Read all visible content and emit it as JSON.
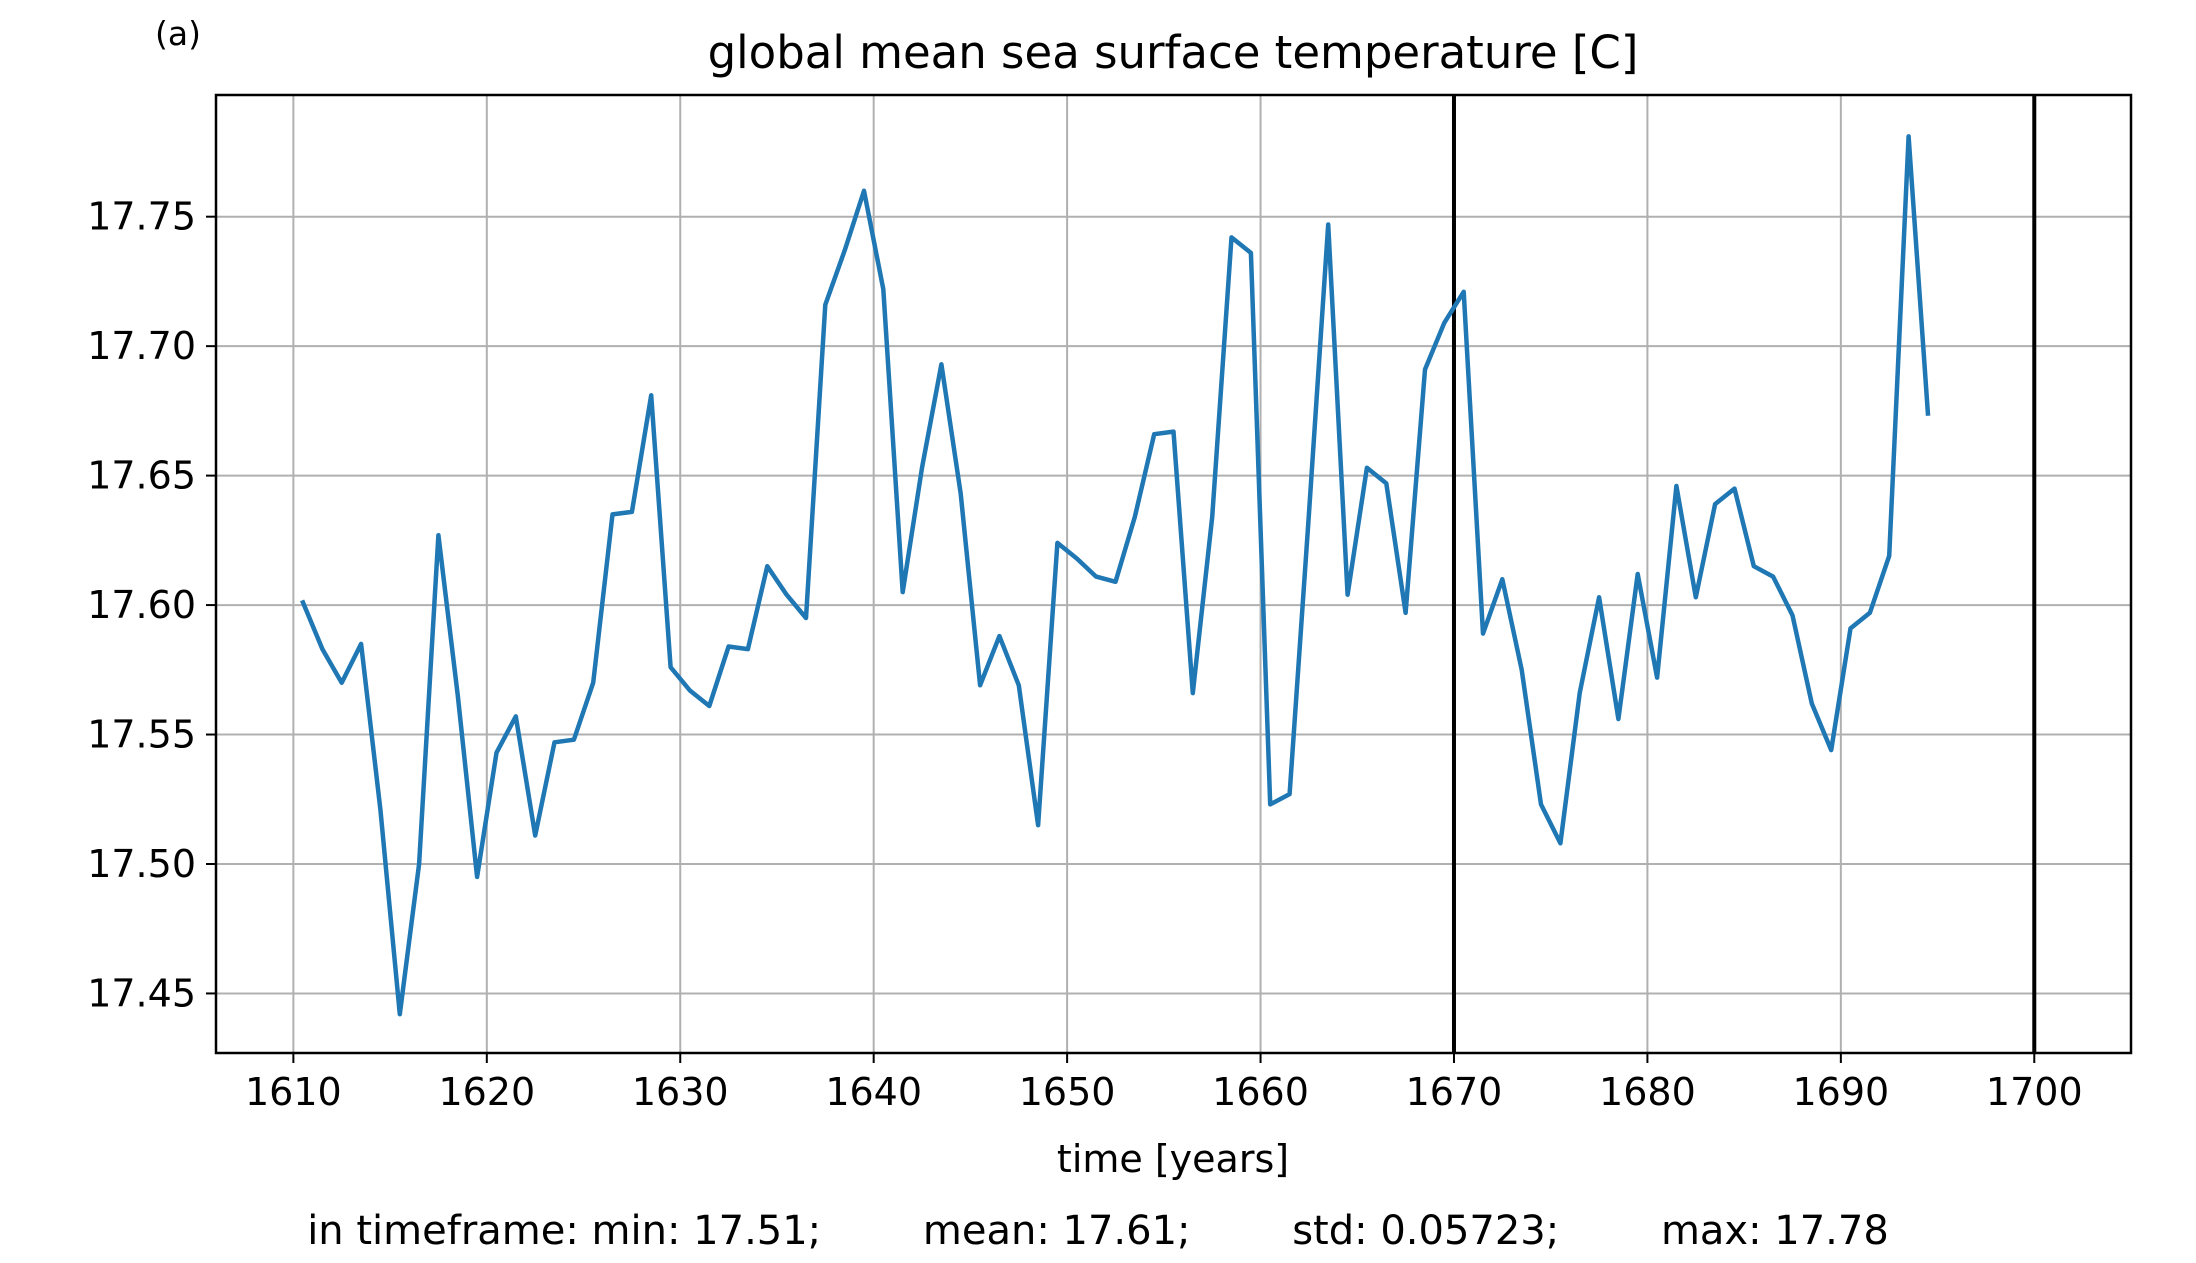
{
  "panel_label": "(a)",
  "stats": {
    "min": "in timeframe: min: 17.51;",
    "mean": "mean: 17.61;",
    "std": "std: 0.05723;",
    "max": "max: 17.78"
  },
  "chart_data": {
    "type": "line",
    "title": "global mean sea surface temperature [C]",
    "xlabel": "time [years]",
    "ylabel": "",
    "xlim": [
      1606,
      1705
    ],
    "ylim": [
      17.427,
      17.797
    ],
    "xticks": [
      1610,
      1620,
      1630,
      1640,
      1650,
      1660,
      1670,
      1680,
      1690,
      1700
    ],
    "xtick_labels": [
      "1610",
      "1620",
      "1630",
      "1640",
      "1650",
      "1660",
      "1670",
      "1680",
      "1690",
      "1700"
    ],
    "yticks": [
      17.45,
      17.5,
      17.55,
      17.6,
      17.65,
      17.7,
      17.75
    ],
    "ytick_labels": [
      "17.45",
      "17.50",
      "17.55",
      "17.60",
      "17.65",
      "17.70",
      "17.75"
    ],
    "grid": true,
    "vlines": [
      1670,
      1700
    ],
    "colors": {
      "series": "#1f77b4",
      "grid": "#b0b0b0",
      "vline": "#000000"
    },
    "series": [
      {
        "x": [
          1610.5,
          1611.5,
          1612.5,
          1613.5,
          1614.5,
          1615.5,
          1616.5,
          1617.5,
          1618.5,
          1619.5,
          1620.5,
          1621.5,
          1622.5,
          1623.5,
          1624.5,
          1625.5,
          1626.5,
          1627.5,
          1628.5,
          1629.5,
          1630.5,
          1631.5,
          1632.5,
          1633.5,
          1634.5,
          1635.5,
          1636.5,
          1637.5,
          1638.5,
          1639.5,
          1640.5,
          1641.5,
          1642.5,
          1643.5,
          1644.5,
          1645.5,
          1646.5,
          1647.5,
          1648.5,
          1649.5,
          1650.5,
          1651.5,
          1652.5,
          1653.5,
          1654.5,
          1655.5,
          1656.5,
          1657.5,
          1658.5,
          1659.5,
          1660.5,
          1661.5,
          1662.5,
          1663.5,
          1664.5,
          1665.5,
          1666.5,
          1667.5,
          1668.5,
          1669.5,
          1670.5,
          1671.5,
          1672.5,
          1673.5,
          1674.5,
          1675.5,
          1676.5,
          1677.5,
          1678.5,
          1679.5,
          1680.5,
          1681.5,
          1682.5,
          1683.5,
          1684.5,
          1685.5,
          1686.5,
          1687.5,
          1688.5,
          1689.5,
          1690.5,
          1691.5,
          1692.5,
          1693.5,
          1694.5
        ],
        "y": [
          17.601,
          17.583,
          17.57,
          17.585,
          17.521,
          17.442,
          17.5,
          17.627,
          17.565,
          17.495,
          17.543,
          17.557,
          17.511,
          17.547,
          17.548,
          17.57,
          17.635,
          17.636,
          17.681,
          17.576,
          17.567,
          17.561,
          17.584,
          17.583,
          17.615,
          17.604,
          17.595,
          17.716,
          17.737,
          17.76,
          17.722,
          17.605,
          17.653,
          17.693,
          17.643,
          17.569,
          17.588,
          17.569,
          17.515,
          17.624,
          17.618,
          17.611,
          17.609,
          17.634,
          17.666,
          17.667,
          17.566,
          17.634,
          17.742,
          17.736,
          17.523,
          17.527,
          17.635,
          17.747,
          17.604,
          17.653,
          17.647,
          17.597,
          17.691,
          17.709,
          17.721,
          17.589,
          17.61,
          17.575,
          17.523,
          17.508,
          17.566,
          17.603,
          17.556,
          17.612,
          17.572,
          17.646,
          17.603,
          17.639,
          17.645,
          17.615,
          17.611,
          17.596,
          17.562,
          17.544,
          17.591,
          17.597,
          17.619,
          17.781,
          17.674
        ]
      }
    ]
  }
}
